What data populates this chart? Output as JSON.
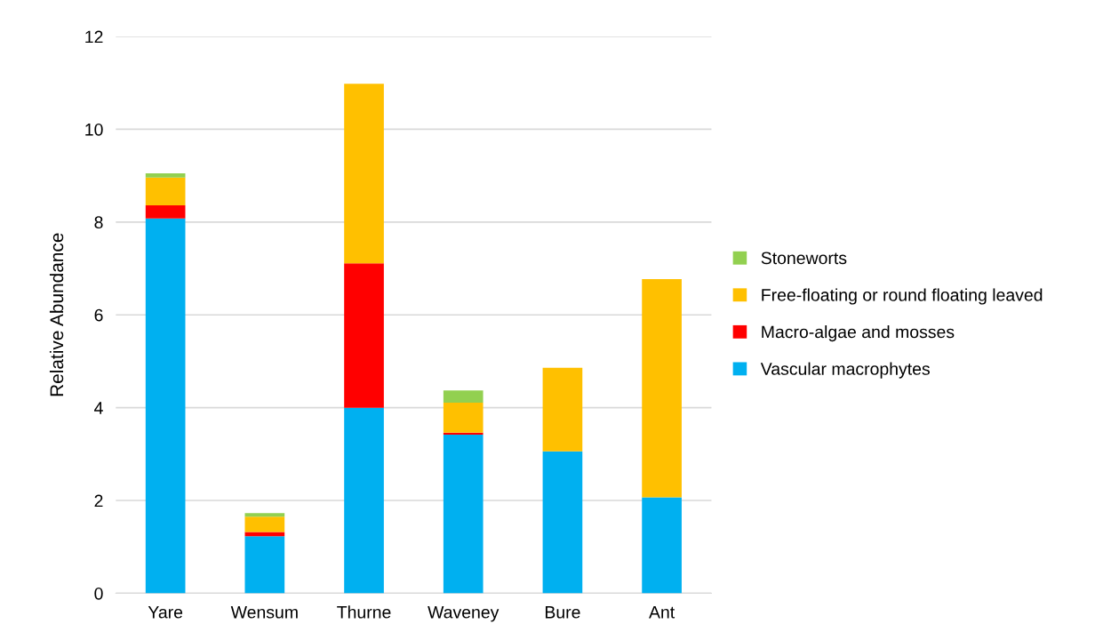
{
  "chart_data": {
    "type": "bar",
    "stacked": true,
    "ylabel": "Relative Abundance",
    "categories": [
      "Yare",
      "Wensum",
      "Thurne",
      "Waveney",
      "Bure",
      "Ant"
    ],
    "series": [
      {
        "name": "Vascular macrophytes",
        "color": "#00b0f0",
        "values": [
          8.08,
          1.23,
          4.0,
          3.42,
          3.06,
          2.07
        ]
      },
      {
        "name": "Macro-algae and mosses",
        "color": "#ff0000",
        "values": [
          0.28,
          0.09,
          3.11,
          0.04,
          0,
          0
        ]
      },
      {
        "name": "Free-floating or round floating leaved",
        "color": "#ffc000",
        "values": [
          0.6,
          0.33,
          3.87,
          0.65,
          1.8,
          4.7
        ]
      },
      {
        "name": "Stoneworts",
        "color": "#92d050",
        "values": [
          0.09,
          0.08,
          0,
          0.26,
          0,
          0
        ]
      }
    ],
    "ylim": [
      0,
      12
    ],
    "yticks": [
      0,
      2,
      4,
      6,
      8,
      10,
      12
    ],
    "grid": "y",
    "legend": "right"
  }
}
